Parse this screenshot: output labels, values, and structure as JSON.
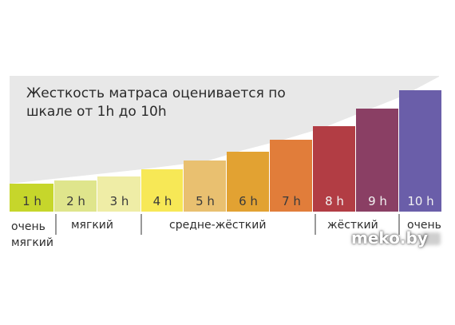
{
  "title": "Жесткость матраса оценивается по шкале от 1h до 10h",
  "scale": [
    {
      "label": "1 h",
      "color": "#c6d62b"
    },
    {
      "label": "2 h",
      "color": "#dfe58c"
    },
    {
      "label": "3 h",
      "color": "#efeda6"
    },
    {
      "label": "4 h",
      "color": "#f7e856"
    },
    {
      "label": "5 h",
      "color": "#e9c070"
    },
    {
      "label": "6 h",
      "color": "#e2a232"
    },
    {
      "label": "7 h",
      "color": "#e17d3a"
    },
    {
      "label": "8 h",
      "color": "#b23d44"
    },
    {
      "label": "9 h",
      "color": "#8a3f64"
    },
    {
      "label": "10 h",
      "color": "#6a5ea9"
    }
  ],
  "categories": {
    "very_soft": "очень мягкий",
    "soft": "мягкий",
    "medium_firm": "средне-жёсткий",
    "firm": "жёсткий",
    "very_firm": "очень"
  },
  "watermark": "meko.by",
  "background_color": "#e8e8e8"
}
